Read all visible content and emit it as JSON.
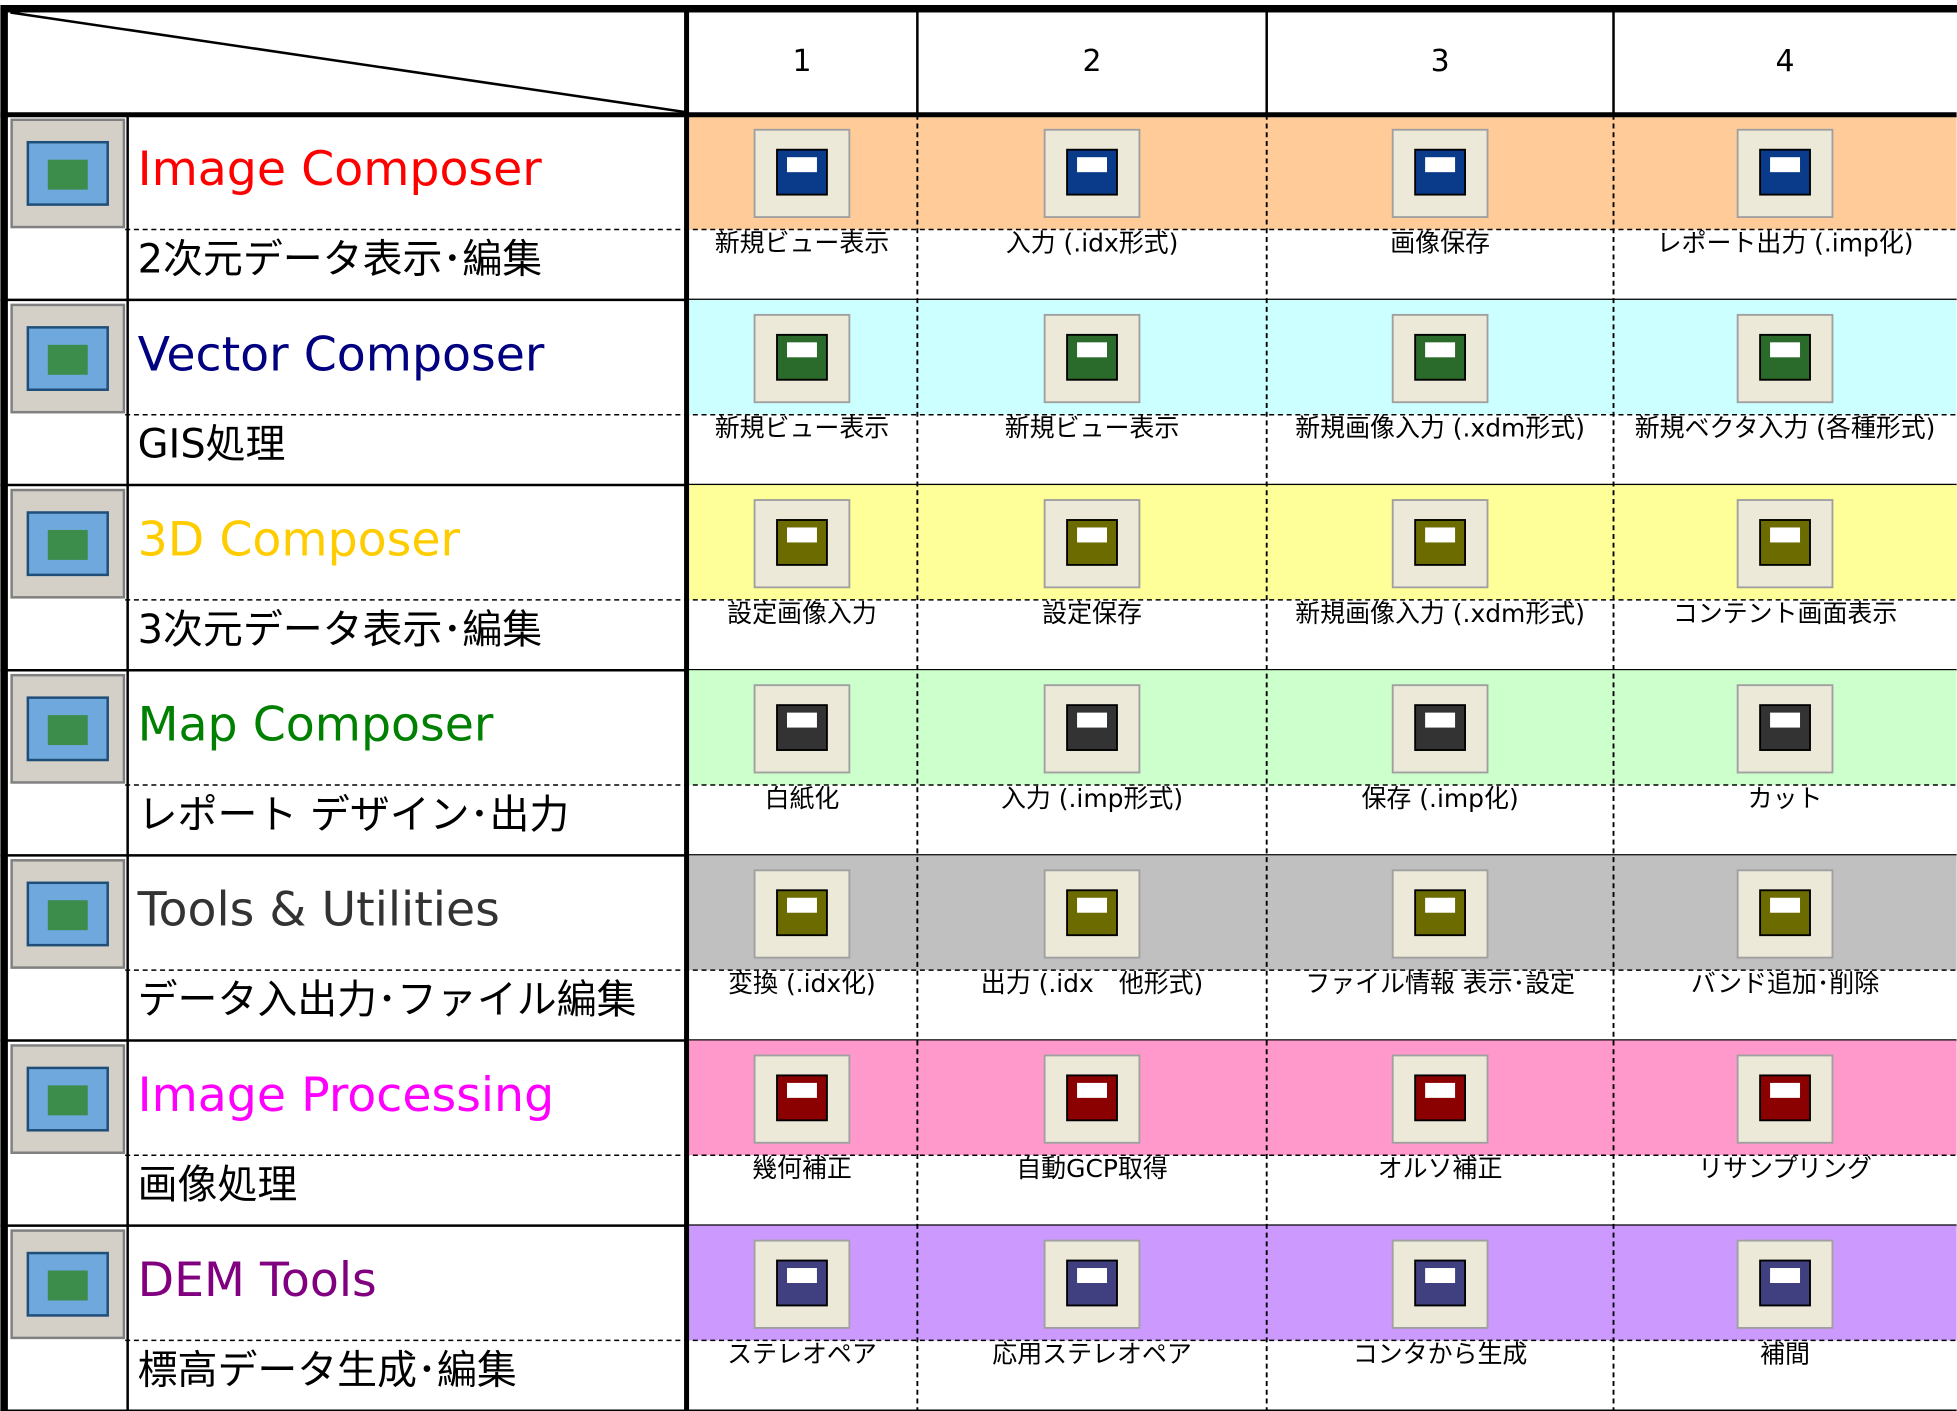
{
  "header": {
    "columns": [
      "1",
      "2",
      "3",
      "4"
    ]
  },
  "rows": [
    {
      "title": "Image Composer",
      "subtitle": "2次元データ表示･編集",
      "cells": [
        "新規ビュー表示",
        "入力 (.idx形式)",
        "画像保存",
        "レポート出力 (.imp化)"
      ]
    },
    {
      "title": "Vector Composer",
      "subtitle": "GIS処理",
      "cells": [
        "新規ビュー表示",
        "新規ビュー表示",
        "新規画像入力 (.xdm形式)",
        "新規ベクタ入力 (各種形式)"
      ]
    },
    {
      "title": "3D Composer",
      "subtitle": "3次元データ表示･編集",
      "cells": [
        "設定画像入力",
        "設定保存",
        "新規画像入力 (.xdm形式)",
        "コンテント画面表示"
      ]
    },
    {
      "title": "Map Composer",
      "subtitle": "レポート デザイン･出力",
      "cells": [
        "白紙化",
        "入力 (.imp形式)",
        "保存 (.imp化)",
        "カット"
      ]
    },
    {
      "title": "Tools & Utilities",
      "subtitle": "データ入出力･ファイル編集",
      "cells": [
        "変換 (.idx化)",
        "出力 (.idx　他形式)",
        "ファイル情報 表示･設定",
        "バンド追加･削除"
      ]
    },
    {
      "title": "Image Processing",
      "subtitle": "画像処理",
      "cells": [
        "幾何補正",
        "自動GCP取得",
        "オルソ補正",
        "リサンプリング"
      ]
    },
    {
      "title": "DEM Tools",
      "subtitle": "標高データ生成･編集",
      "cells": [
        "ステレオペア",
        "応用ステレオペア",
        "コンタから生成",
        "補間"
      ]
    }
  ]
}
